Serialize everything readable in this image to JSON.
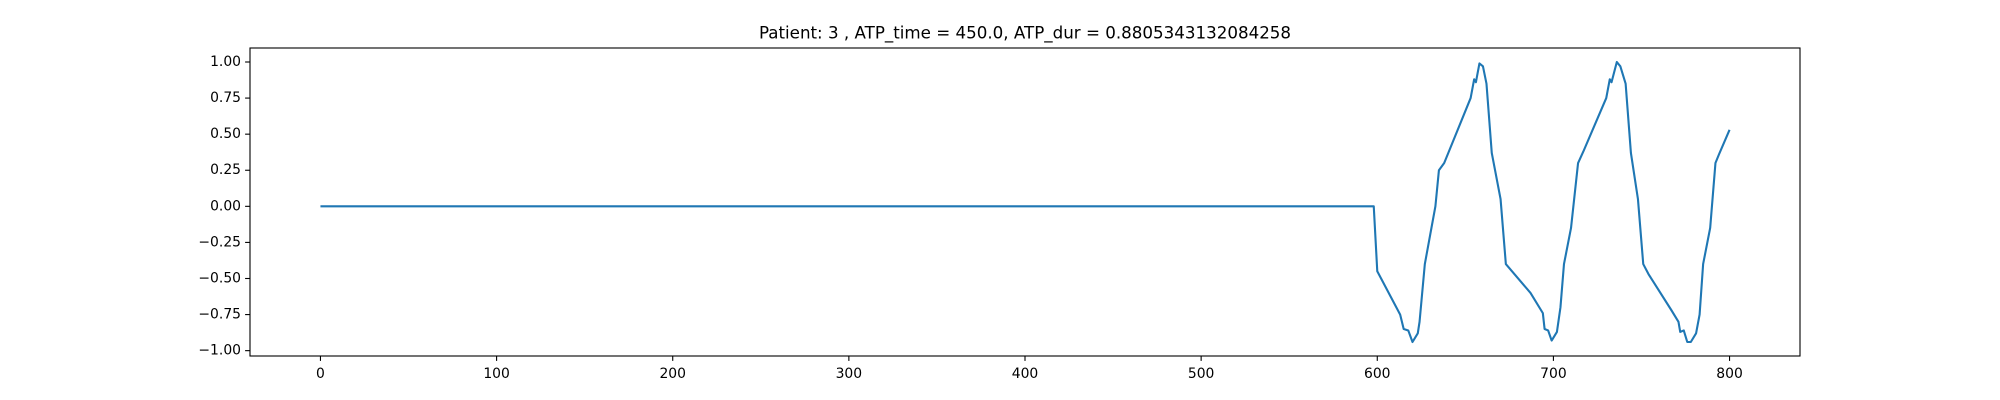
{
  "chart_data": {
    "type": "line",
    "title": "Patient: 3 , ATP_time = 450.0, ATP_dur = 0.8805343132084258",
    "x": [
      0,
      598,
      600,
      613,
      615,
      617.6,
      620,
      623,
      624,
      627,
      630,
      633,
      635,
      638,
      653,
      655,
      656,
      658,
      660,
      662,
      665,
      670,
      673,
      687,
      694,
      695,
      697,
      699,
      702,
      704,
      706,
      710,
      714,
      717,
      730,
      732,
      733,
      736,
      738,
      741,
      744,
      748,
      751,
      754,
      767,
      771,
      772,
      774,
      776,
      778,
      781,
      783,
      785,
      789,
      792,
      794,
      800
    ],
    "series": [
      {
        "color": "#1f77b4",
        "values": [
          0,
          0,
          -0.45,
          -0.75,
          -0.85,
          -0.86,
          -0.94,
          -0.88,
          -0.8,
          -0.4,
          -0.2,
          0.0,
          0.25,
          0.3,
          0.75,
          0.88,
          0.86,
          0.99,
          0.97,
          0.85,
          0.37,
          0.05,
          -0.4,
          -0.6,
          -0.74,
          -0.85,
          -0.86,
          -0.93,
          -0.87,
          -0.7,
          -0.4,
          -0.15,
          0.3,
          0.38,
          0.75,
          0.88,
          0.86,
          1.0,
          0.97,
          0.85,
          0.37,
          0.05,
          -0.4,
          -0.47,
          -0.72,
          -0.8,
          -0.87,
          -0.86,
          -0.94,
          -0.94,
          -0.88,
          -0.75,
          -0.4,
          -0.15,
          0.3,
          0.36,
          0.53
        ]
      }
    ],
    "xlim": [
      -40,
      840
    ],
    "xticks": [
      0,
      100,
      200,
      300,
      400,
      500,
      600,
      700,
      800
    ],
    "ylim": [
      -1.037,
      1.097
    ],
    "yticks": [
      {
        "value": -1,
        "label": "−1.00"
      },
      {
        "value": -0.75,
        "label": "−0.75"
      },
      {
        "value": -0.5,
        "label": "−0.50"
      },
      {
        "value": -0.25,
        "label": "−0.25"
      },
      {
        "value": 0,
        "label": "0.00"
      },
      {
        "value": 0.25,
        "label": "0.25"
      },
      {
        "value": 0.5,
        "label": "0.50"
      },
      {
        "value": 0.75,
        "label": "0.75"
      },
      {
        "value": 1,
        "label": "1.00"
      }
    ],
    "grid": false
  }
}
